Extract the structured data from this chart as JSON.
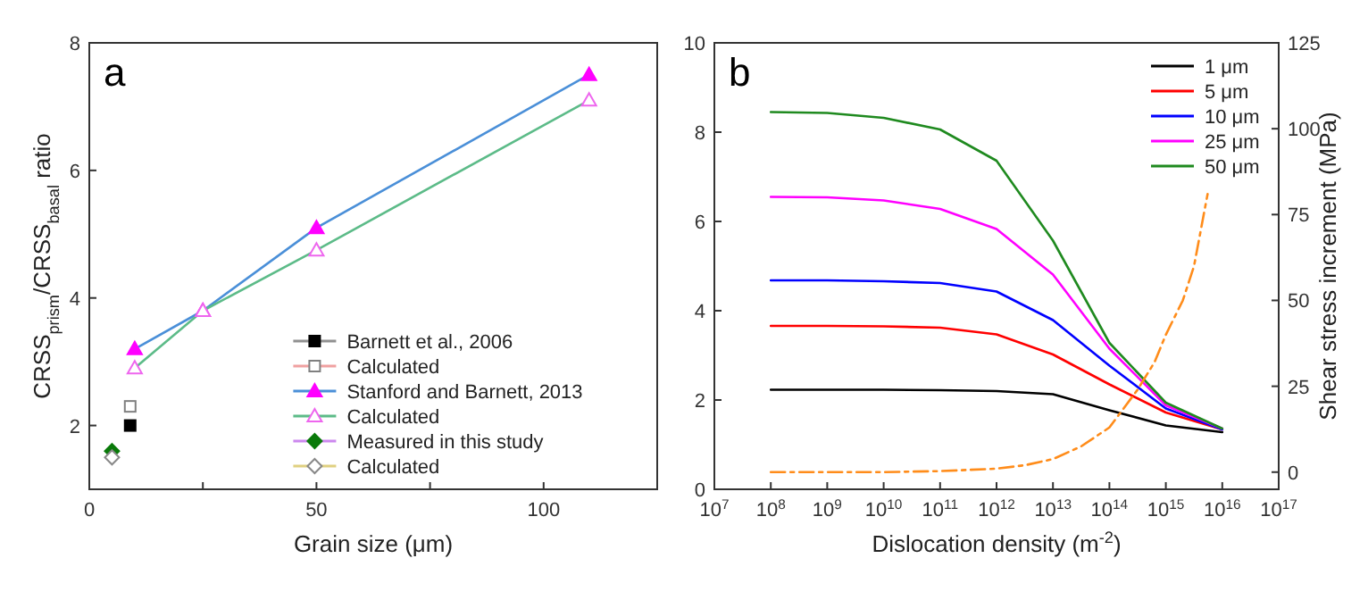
{
  "chart_data": [
    {
      "type": "line",
      "xlabel": "Grain size (μm)",
      "ylabel": "CRSS$_{prism}$/CRSS$_{basal}$ ratio",
      "annotations": [
        "a"
      ],
      "xlim": [
        0,
        125
      ],
      "xticks": [
        0,
        {
          "value": 25,
          "label": null
        },
        50,
        {
          "value": 75,
          "label": null
        },
        100
      ],
      "ylim": [
        1,
        8
      ],
      "yticks": [
        2,
        4,
        6,
        8
      ],
      "legend": "bottom right",
      "grid": false,
      "series": [
        {
          "name": "Barnett et al., 2006",
          "color": "#909090",
          "colors": [
            "#000000"
          ],
          "marker": "square",
          "x": [
            9
          ],
          "values": [
            2.0
          ]
        },
        {
          "name": "Calculated",
          "color": "#f0a0a0",
          "colors": [
            "#808080"
          ],
          "marker": "square-open",
          "x": [
            9
          ],
          "values": [
            2.3
          ]
        },
        {
          "name": "Stanford and Barnett, 2013",
          "color": "#4a8fd8",
          "colors": [
            "#ff00ff",
            "#ff00ff",
            "#ff00ff",
            "#ff00ff"
          ],
          "marker": "triangle",
          "x": [
            10,
            25,
            50,
            110
          ],
          "values": [
            3.2,
            3.8,
            5.1,
            7.5
          ]
        },
        {
          "name": "Calculated",
          "color": "#5cbb88",
          "colors": [
            "#ee66ee",
            "#ee66ee",
            "#ee66ee",
            "#ee66ee"
          ],
          "marker": "triangle-open",
          "x": [
            10,
            25,
            50,
            110
          ],
          "values": [
            2.9,
            3.8,
            4.75,
            7.1
          ]
        },
        {
          "name": "Measured in this study",
          "color": "#cc88ee",
          "colors": [
            "#0a7a0a"
          ],
          "marker": "diamond",
          "x": [
            5
          ],
          "values": [
            1.6
          ]
        },
        {
          "name": "Calculated",
          "color": "#e0d080",
          "colors": [
            "#888888"
          ],
          "marker": "diamond-open",
          "x": [
            5
          ],
          "values": [
            1.5
          ]
        }
      ]
    },
    {
      "type": "line",
      "xlabel": "Dislocation density (m$^{-2}$)",
      "y2label": "Shear stress increment (MPa)",
      "annotations": [
        "b"
      ],
      "log": "x",
      "legend": "top right",
      "grid": false,
      "xlim": [
        10000000.0,
        1e+17
      ],
      "xticks": [
        {
          "value": 10000000.0,
          "label": "10$^{7}$"
        },
        {
          "value": 100000000.0,
          "label": "10$^{8}$"
        },
        {
          "value": 1000000000.0,
          "label": "10$^{9}$"
        },
        {
          "value": 10000000000.0,
          "label": "10$^{10}$"
        },
        {
          "value": 100000000000.0,
          "label": "10$^{11}$"
        },
        {
          "value": 1000000000000.0,
          "label": "10$^{12}$"
        },
        {
          "value": 10000000000000.0,
          "label": "10$^{13}$"
        },
        {
          "value": 100000000000000.0,
          "label": "10$^{14}$"
        },
        {
          "value": 1000000000000000.0,
          "label": "10$^{15}$"
        },
        {
          "value": 1e+16,
          "label": "10$^{16}$"
        },
        {
          "value": 1e+17,
          "label": "10$^{17}$"
        }
      ],
      "ylim": [
        0,
        10
      ],
      "yticks": [
        0,
        2,
        4,
        6,
        8,
        10
      ],
      "y2lim": [
        -5,
        125
      ],
      "y2ticks": [
        0,
        25,
        50,
        75,
        100,
        125
      ],
      "series": [
        {
          "name": "1 μm",
          "color": "#000000",
          "x": [
            100000000.0,
            1000000000.0,
            10000000000.0,
            100000000000.0,
            1000000000000.0,
            10000000000000.0,
            100000000000000.0,
            1000000000000000.0,
            1e+16
          ],
          "values": [
            2.23,
            2.23,
            2.23,
            2.22,
            2.2,
            2.13,
            1.77,
            1.43,
            1.28
          ]
        },
        {
          "name": "5 μm",
          "color": "#ff0000",
          "x": [
            100000000.0,
            1000000000.0,
            10000000000.0,
            100000000000.0,
            1000000000000.0,
            10000000000000.0,
            100000000000000.0,
            1000000000000000.0,
            1e+16
          ],
          "values": [
            3.66,
            3.66,
            3.65,
            3.62,
            3.47,
            3.02,
            2.35,
            1.72,
            1.34
          ]
        },
        {
          "name": "10 μm",
          "color": "#0000ff",
          "x": [
            100000000.0,
            1000000000.0,
            10000000000.0,
            100000000000.0,
            1000000000000.0,
            10000000000000.0,
            100000000000000.0,
            1000000000000000.0,
            1e+16
          ],
          "values": [
            4.68,
            4.68,
            4.66,
            4.62,
            4.43,
            3.79,
            2.77,
            1.81,
            1.34
          ]
        },
        {
          "name": "25 μm",
          "color": "#ff00ff",
          "x": [
            100000000.0,
            1000000000.0,
            10000000000.0,
            100000000000.0,
            1000000000000.0,
            10000000000000.0,
            100000000000000.0,
            1000000000000000.0,
            1e+16
          ],
          "values": [
            6.55,
            6.54,
            6.47,
            6.28,
            5.83,
            4.81,
            3.15,
            1.88,
            1.36
          ]
        },
        {
          "name": "50 μm",
          "color": "#1f8a1f",
          "x": [
            100000000.0,
            1000000000.0,
            10000000000.0,
            100000000000.0,
            1000000000000.0,
            10000000000000.0,
            100000000000000.0,
            1000000000000000.0,
            1e+16
          ],
          "values": [
            8.45,
            8.43,
            8.32,
            8.06,
            7.36,
            5.57,
            3.28,
            1.94,
            1.36
          ]
        },
        {
          "color": "#ff8c1a",
          "axis": "y2",
          "line_style": "dashdot",
          "x": [
            100000000.0,
            1000000000.0,
            10000000000.0,
            100000000000.0,
            1000000000000.0,
            3160000000000.0,
            10000000000000.0,
            31600000000000.0,
            100000000000000.0,
            316000000000000.0,
            630000000000000.0,
            1000000000000000.0,
            2000000000000000.0,
            3160000000000000.0,
            5500000000000000.0
          ],
          "values": [
            0,
            0,
            0,
            0.3,
            1,
            2,
            3.8,
            7.5,
            13,
            24,
            32,
            40,
            50,
            60,
            81
          ]
        }
      ]
    }
  ]
}
